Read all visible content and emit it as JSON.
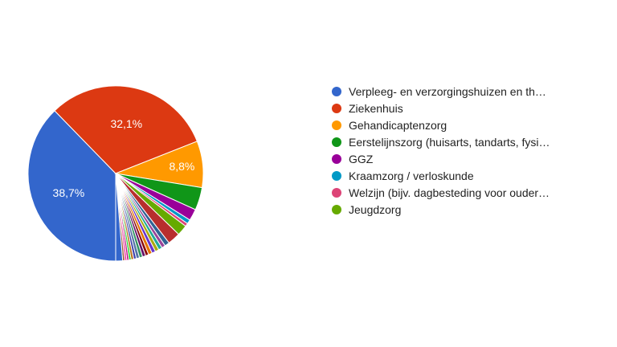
{
  "chart_data": {
    "type": "pie",
    "start_angle_deg": 90,
    "direction": "clockwise",
    "slices": [
      {
        "label": "Verpleeg- en verzorgingshuizen en th…",
        "value": 38.7,
        "color": "#3366cc",
        "data_label": "38,7%"
      },
      {
        "label": "Ziekenhuis",
        "value": 32.1,
        "color": "#dc3912",
        "data_label": "32,1%"
      },
      {
        "label": "Gehandicaptenzorg",
        "value": 8.8,
        "color": "#ff9900",
        "data_label": "8,8%"
      },
      {
        "label": "Eerstelijnszorg (huisarts, tandarts, fysi…",
        "value": 4.3,
        "color": "#109618",
        "data_label": ""
      },
      {
        "label": "GGZ",
        "value": 2.2,
        "color": "#990099",
        "data_label": ""
      },
      {
        "label": "Kraamzorg / verloskunde",
        "value": 0.8,
        "color": "#0099c6",
        "data_label": ""
      },
      {
        "label": "Welzijn (bijv. dagbesteding voor ouder…",
        "value": 0.6,
        "color": "#dd4477",
        "data_label": ""
      },
      {
        "label": "Jeugdzorg",
        "value": 2.0,
        "color": "#66aa00",
        "data_label": ""
      },
      {
        "label": "",
        "value": 2.4,
        "color": "#b82e2e",
        "data_label": ""
      },
      {
        "label": "",
        "value": 0.9,
        "color": "#316395",
        "data_label": ""
      },
      {
        "label": "",
        "value": 0.7,
        "color": "#994499",
        "data_label": ""
      },
      {
        "label": "",
        "value": 0.7,
        "color": "#22aa99",
        "data_label": ""
      },
      {
        "label": "",
        "value": 0.7,
        "color": "#aaaa11",
        "data_label": ""
      },
      {
        "label": "",
        "value": 0.7,
        "color": "#6633cc",
        "data_label": ""
      },
      {
        "label": "",
        "value": 0.7,
        "color": "#e67300",
        "data_label": ""
      },
      {
        "label": "",
        "value": 0.6,
        "color": "#8b0707",
        "data_label": ""
      },
      {
        "label": "",
        "value": 0.6,
        "color": "#651067",
        "data_label": ""
      },
      {
        "label": "",
        "value": 0.6,
        "color": "#329262",
        "data_label": ""
      },
      {
        "label": "",
        "value": 0.6,
        "color": "#5574a6",
        "data_label": ""
      },
      {
        "label": "",
        "value": 0.5,
        "color": "#3b3eac",
        "data_label": ""
      },
      {
        "label": "",
        "value": 0.5,
        "color": "#b77322",
        "data_label": ""
      },
      {
        "label": "",
        "value": 0.4,
        "color": "#16d620",
        "data_label": ""
      },
      {
        "label": "",
        "value": 0.4,
        "color": "#b91383",
        "data_label": ""
      },
      {
        "label": "",
        "value": 0.4,
        "color": "#f4359e",
        "data_label": ""
      },
      {
        "label": "",
        "value": 0.4,
        "color": "#9c5935",
        "data_label": ""
      },
      {
        "label": "",
        "value": 1.3,
        "color": "#3366cc",
        "data_label": ""
      }
    ],
    "legend": {
      "position": "right",
      "visible_entries": 8
    }
  }
}
